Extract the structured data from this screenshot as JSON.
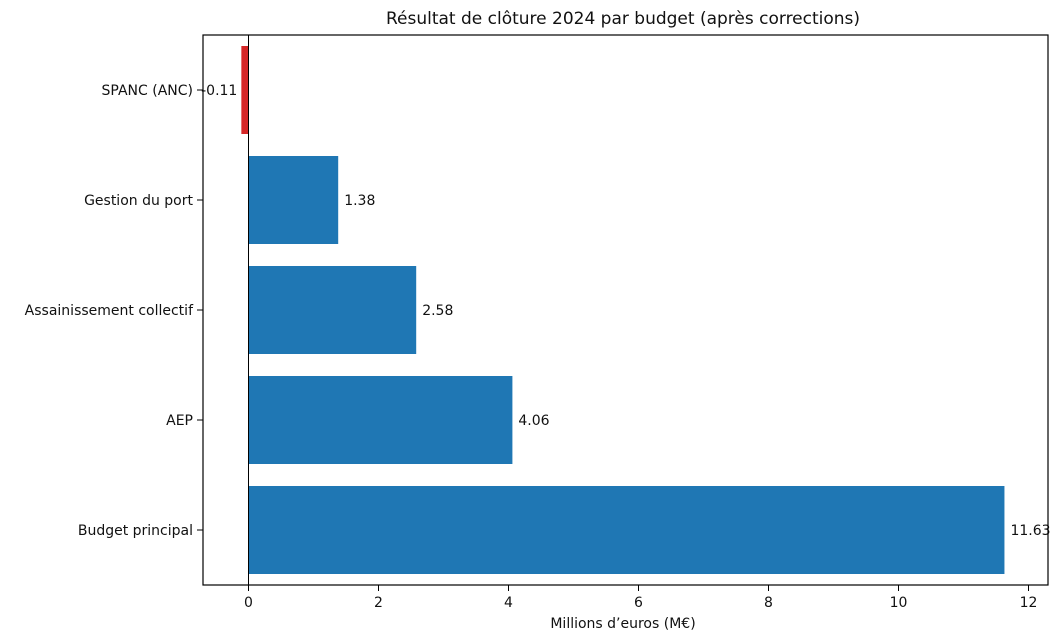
{
  "chart_data": {
    "type": "bar",
    "orientation": "horizontal",
    "title": "Résultat de clôture 2024 par budget (après corrections)",
    "xlabel": "Millions d’euros (M€)",
    "ylabel": "",
    "xlim": [
      -0.7,
      12.3
    ],
    "xticks": [
      0,
      2,
      4,
      6,
      8,
      10,
      12
    ],
    "grid": false,
    "legend": "none",
    "zero_line": true,
    "categories": [
      "SPANC (ANC)",
      "Gestion du port",
      "Assainissement collectif",
      "AEP",
      "Budget principal"
    ],
    "values": [
      -0.11,
      1.38,
      2.58,
      4.06,
      11.63
    ],
    "data_labels": [
      "-0.11",
      "1.38",
      "2.58",
      "4.06",
      "11.63"
    ],
    "colors": {
      "positive": "#1f77b4",
      "negative": "#d62728"
    }
  }
}
